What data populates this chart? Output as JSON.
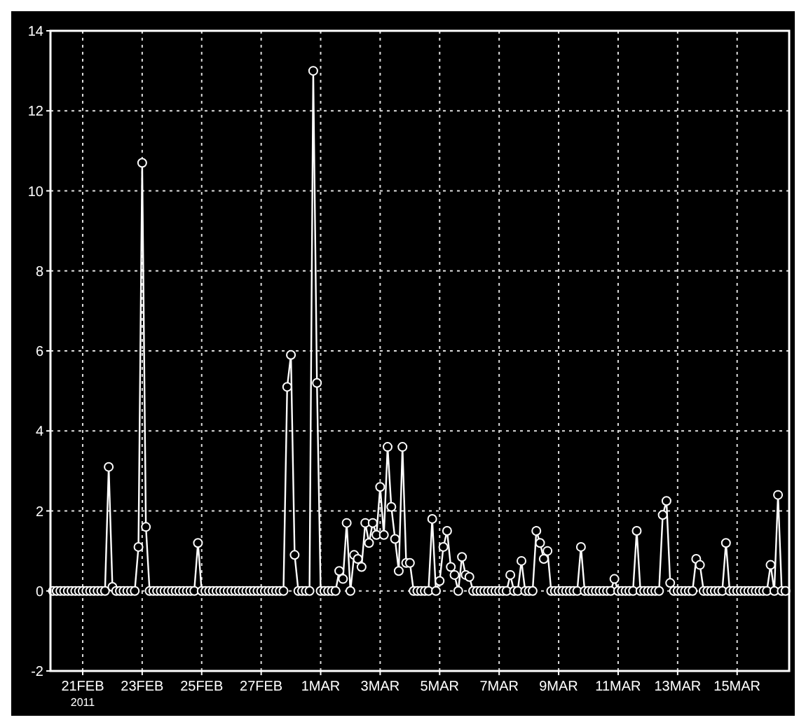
{
  "chart_data": {
    "type": "line",
    "annotations": [
      "2011"
    ],
    "xlim": [
      "2011-02-19T22:00",
      "2011-03-16T18:00"
    ],
    "xticks": [
      {
        "value": "2011-02-21T00:00",
        "label": "21FEB"
      },
      {
        "value": "2011-02-23T00:00",
        "label": "23FEB"
      },
      {
        "value": "2011-02-25T00:00",
        "label": "25FEB"
      },
      {
        "value": "2011-02-27T00:00",
        "label": "27FEB"
      },
      {
        "value": "2011-03-01T00:00",
        "label": "1MAR"
      },
      {
        "value": "2011-03-03T00:00",
        "label": "3MAR"
      },
      {
        "value": "2011-03-05T00:00",
        "label": "5MAR"
      },
      {
        "value": "2011-03-07T00:00",
        "label": "7MAR"
      },
      {
        "value": "2011-03-09T00:00",
        "label": "9MAR"
      },
      {
        "value": "2011-03-11T00:00",
        "label": "11MAR"
      },
      {
        "value": "2011-03-13T00:00",
        "label": "13MAR"
      },
      {
        "value": "2011-03-15T00:00",
        "label": "15MAR"
      }
    ],
    "ylim": [
      -2,
      14
    ],
    "yticks": [
      -2,
      0,
      2,
      4,
      6,
      8,
      10,
      12,
      14
    ],
    "grid": true,
    "marker": "circle",
    "line_style": "solid",
    "series": [
      {
        "color": "#ffffff",
        "x": [
          "2011-02-20T00:00",
          "2011-02-20T03:00",
          "2011-02-20T06:00",
          "2011-02-20T09:00",
          "2011-02-20T12:00",
          "2011-02-20T15:00",
          "2011-02-20T18:00",
          "2011-02-20T21:00",
          "2011-02-21T00:00",
          "2011-02-21T03:00",
          "2011-02-21T06:00",
          "2011-02-21T09:00",
          "2011-02-21T12:00",
          "2011-02-21T15:00",
          "2011-02-21T18:00",
          "2011-02-21T21:00",
          "2011-02-22T00:00",
          "2011-02-22T03:00",
          "2011-02-22T06:00",
          "2011-02-22T09:00",
          "2011-02-22T12:00",
          "2011-02-22T15:00",
          "2011-02-22T18:00",
          "2011-02-22T21:00",
          "2011-02-23T00:00",
          "2011-02-23T03:00",
          "2011-02-23T06:00",
          "2011-02-23T09:00",
          "2011-02-23T12:00",
          "2011-02-23T15:00",
          "2011-02-23T18:00",
          "2011-02-23T21:00",
          "2011-02-24T00:00",
          "2011-02-24T03:00",
          "2011-02-24T06:00",
          "2011-02-24T09:00",
          "2011-02-24T12:00",
          "2011-02-24T15:00",
          "2011-02-24T18:00",
          "2011-02-24T21:00",
          "2011-02-25T00:00",
          "2011-02-25T03:00",
          "2011-02-25T06:00",
          "2011-02-25T09:00",
          "2011-02-25T12:00",
          "2011-02-25T15:00",
          "2011-02-25T18:00",
          "2011-02-25T21:00",
          "2011-02-26T00:00",
          "2011-02-26T03:00",
          "2011-02-26T06:00",
          "2011-02-26T09:00",
          "2011-02-26T12:00",
          "2011-02-26T15:00",
          "2011-02-26T18:00",
          "2011-02-26T21:00",
          "2011-02-27T00:00",
          "2011-02-27T03:00",
          "2011-02-27T06:00",
          "2011-02-27T09:00",
          "2011-02-27T12:00",
          "2011-02-27T15:00",
          "2011-02-27T18:00",
          "2011-02-27T21:00",
          "2011-02-28T00:00",
          "2011-02-28T03:00",
          "2011-02-28T06:00",
          "2011-02-28T09:00",
          "2011-02-28T12:00",
          "2011-02-28T15:00",
          "2011-02-28T18:00",
          "2011-02-28T21:00",
          "2011-03-01T00:00",
          "2011-03-01T03:00",
          "2011-03-01T06:00",
          "2011-03-01T09:00",
          "2011-03-01T12:00",
          "2011-03-01T15:00",
          "2011-03-01T18:00",
          "2011-03-01T21:00",
          "2011-03-02T00:00",
          "2011-03-02T03:00",
          "2011-03-02T06:00",
          "2011-03-02T09:00",
          "2011-03-02T12:00",
          "2011-03-02T15:00",
          "2011-03-02T18:00",
          "2011-03-02T21:00",
          "2011-03-03T00:00",
          "2011-03-03T03:00",
          "2011-03-03T06:00",
          "2011-03-03T09:00",
          "2011-03-03T12:00",
          "2011-03-03T15:00",
          "2011-03-03T18:00",
          "2011-03-03T21:00",
          "2011-03-04T00:00",
          "2011-03-04T03:00",
          "2011-03-04T06:00",
          "2011-03-04T09:00",
          "2011-03-04T12:00",
          "2011-03-04T15:00",
          "2011-03-04T18:00",
          "2011-03-04T21:00",
          "2011-03-05T00:00",
          "2011-03-05T03:00",
          "2011-03-05T06:00",
          "2011-03-05T09:00",
          "2011-03-05T12:00",
          "2011-03-05T15:00",
          "2011-03-05T18:00",
          "2011-03-05T21:00",
          "2011-03-06T00:00",
          "2011-03-06T03:00",
          "2011-03-06T06:00",
          "2011-03-06T09:00",
          "2011-03-06T12:00",
          "2011-03-06T15:00",
          "2011-03-06T18:00",
          "2011-03-06T21:00",
          "2011-03-07T00:00",
          "2011-03-07T03:00",
          "2011-03-07T06:00",
          "2011-03-07T09:00",
          "2011-03-07T12:00",
          "2011-03-07T15:00",
          "2011-03-07T18:00",
          "2011-03-07T21:00",
          "2011-03-08T00:00",
          "2011-03-08T03:00",
          "2011-03-08T06:00",
          "2011-03-08T09:00",
          "2011-03-08T12:00",
          "2011-03-08T15:00",
          "2011-03-08T18:00",
          "2011-03-08T21:00",
          "2011-03-09T00:00",
          "2011-03-09T03:00",
          "2011-03-09T06:00",
          "2011-03-09T09:00",
          "2011-03-09T12:00",
          "2011-03-09T15:00",
          "2011-03-09T18:00",
          "2011-03-09T21:00",
          "2011-03-10T00:00",
          "2011-03-10T03:00",
          "2011-03-10T06:00",
          "2011-03-10T09:00",
          "2011-03-10T12:00",
          "2011-03-10T15:00",
          "2011-03-10T18:00",
          "2011-03-10T21:00",
          "2011-03-11T00:00",
          "2011-03-11T03:00",
          "2011-03-11T06:00",
          "2011-03-11T09:00",
          "2011-03-11T12:00",
          "2011-03-11T15:00",
          "2011-03-11T18:00",
          "2011-03-11T21:00",
          "2011-03-12T00:00",
          "2011-03-12T03:00",
          "2011-03-12T06:00",
          "2011-03-12T09:00",
          "2011-03-12T12:00",
          "2011-03-12T15:00",
          "2011-03-12T18:00",
          "2011-03-12T21:00",
          "2011-03-13T00:00",
          "2011-03-13T03:00",
          "2011-03-13T06:00",
          "2011-03-13T09:00",
          "2011-03-13T12:00",
          "2011-03-13T15:00",
          "2011-03-13T18:00",
          "2011-03-13T21:00",
          "2011-03-14T00:00",
          "2011-03-14T03:00",
          "2011-03-14T06:00",
          "2011-03-14T09:00",
          "2011-03-14T12:00",
          "2011-03-14T15:00",
          "2011-03-14T18:00",
          "2011-03-14T21:00",
          "2011-03-15T00:00",
          "2011-03-15T03:00",
          "2011-03-15T06:00",
          "2011-03-15T09:00",
          "2011-03-15T12:00",
          "2011-03-15T15:00",
          "2011-03-15T18:00",
          "2011-03-15T21:00",
          "2011-03-16T00:00",
          "2011-03-16T03:00",
          "2011-03-16T06:00",
          "2011-03-16T09:00",
          "2011-03-16T12:00",
          "2011-03-16T15:00"
        ],
        "values": [
          0,
          0,
          0,
          0,
          0,
          0,
          0,
          0,
          0,
          0,
          0,
          0,
          0,
          0,
          0,
          3.1,
          0.1,
          0,
          0,
          0,
          0,
          0,
          0,
          1.1,
          10.7,
          1.6,
          0,
          0,
          0,
          0,
          0,
          0,
          0,
          0,
          0,
          0,
          0,
          0,
          0,
          1.2,
          0,
          0,
          0,
          0,
          0,
          0,
          0,
          0,
          0,
          0,
          0,
          0,
          0,
          0,
          0,
          0,
          0,
          0,
          0,
          0,
          0,
          0,
          0,
          5.1,
          5.9,
          0.9,
          0,
          0,
          0,
          0,
          13.0,
          5.2,
          0,
          0,
          0,
          0,
          0,
          0.5,
          0.3,
          1.7,
          0,
          0.9,
          0.8,
          0.6,
          1.7,
          1.2,
          1.7,
          1.4,
          2.6,
          1.4,
          3.6,
          2.1,
          1.3,
          0.5,
          3.6,
          0.7,
          0.7,
          0,
          0,
          0,
          0,
          0,
          1.8,
          0,
          0.25,
          1.1,
          1.5,
          0.6,
          0.4,
          0,
          0.85,
          0.4,
          0.35,
          0,
          0,
          0,
          0,
          0,
          0,
          0,
          0,
          0,
          0,
          0.4,
          0,
          0,
          0.75,
          0,
          0,
          0,
          1.5,
          1.2,
          0.8,
          1.0,
          0,
          0,
          0,
          0,
          0,
          0,
          0,
          0,
          1.1,
          0,
          0,
          0,
          0,
          0,
          0,
          0,
          0,
          0.3,
          0,
          0,
          0,
          0,
          0,
          1.5,
          0,
          0,
          0,
          0,
          0,
          0,
          1.9,
          2.25,
          0.2,
          0,
          0,
          0,
          0,
          0,
          0,
          0.8,
          0.65,
          0,
          0,
          0,
          0,
          0,
          0,
          1.2,
          0,
          0,
          0,
          0,
          0,
          0,
          0,
          0,
          0,
          0,
          0,
          0.65,
          0,
          2.4,
          0,
          0
        ]
      }
    ]
  }
}
